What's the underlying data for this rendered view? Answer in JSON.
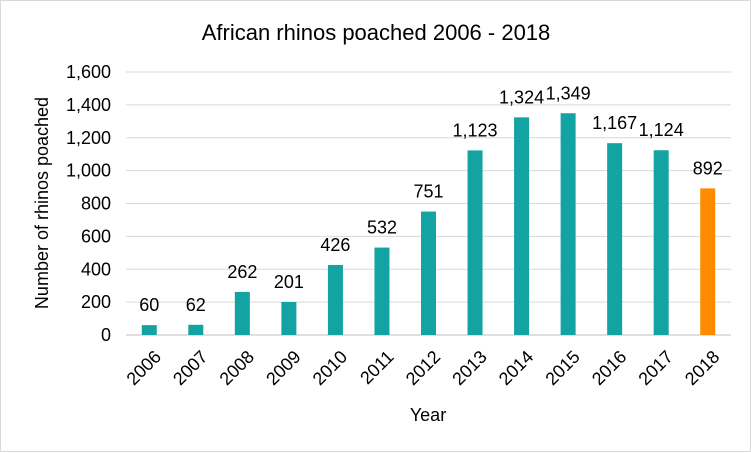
{
  "chart_data": {
    "type": "bar",
    "title": "African rhinos poached 2006 - 2018",
    "xlabel": "Year",
    "ylabel": "Number of rhinos poached",
    "categories": [
      "2006",
      "2007",
      "2008",
      "2009",
      "2010",
      "2011",
      "2012",
      "2013",
      "2014",
      "2015",
      "2016",
      "2017",
      "2018"
    ],
    "values": [
      60,
      62,
      262,
      201,
      426,
      532,
      751,
      1123,
      1324,
      1349,
      1167,
      1124,
      892
    ],
    "data_labels": [
      "60",
      "62",
      "262",
      "201",
      "426",
      "532",
      "751",
      "1,123",
      "1,324",
      "1,349",
      "1,167",
      "1,124",
      "892"
    ],
    "ylim": [
      0,
      1600
    ],
    "yticks": [
      0,
      200,
      400,
      600,
      800,
      1000,
      1200,
      1400,
      1600
    ],
    "ytick_labels": [
      "0",
      "200",
      "400",
      "600",
      "800",
      "1,000",
      "1,200",
      "1,400",
      "1,600"
    ],
    "grid": true,
    "legend": "none",
    "colors": {
      "bar": "#13A3A3",
      "highlight": "#FF8C00",
      "highlight_category": "2018"
    }
  }
}
